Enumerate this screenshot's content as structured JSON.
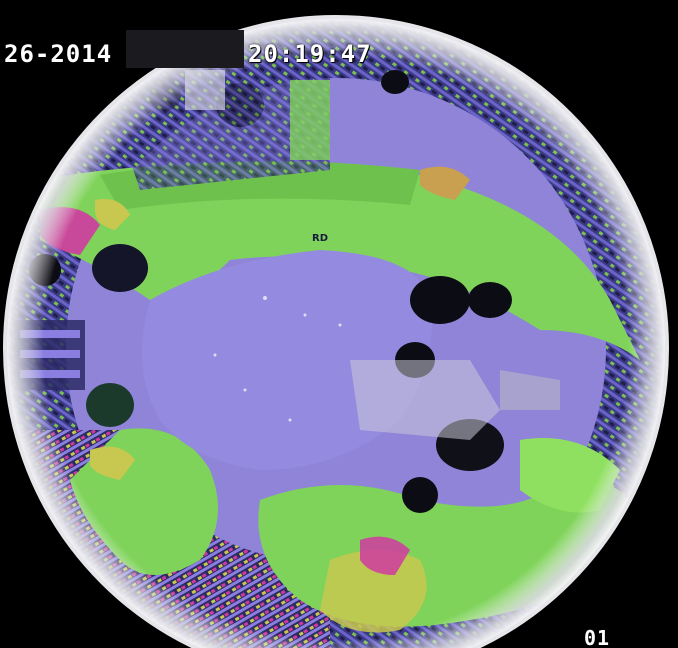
{
  "camera_feed": {
    "overlay": {
      "date_text": "26-2014",
      "time_text": "20:19:47",
      "corner_text": "01"
    },
    "floor_marking_text": "RD",
    "colors": {
      "background": "#000000",
      "floor": "#8f84d8",
      "floor_dark": "#6b5fc4",
      "walkway": "#7fd35a",
      "walkway_bright": "#8fe060",
      "lens_rim": "#e6e6ea",
      "shelving": "#3a3a7a",
      "accent_yellow": "#c8c850",
      "accent_magenta": "#d03aa0",
      "silhouette": "#0c0c14"
    }
  }
}
